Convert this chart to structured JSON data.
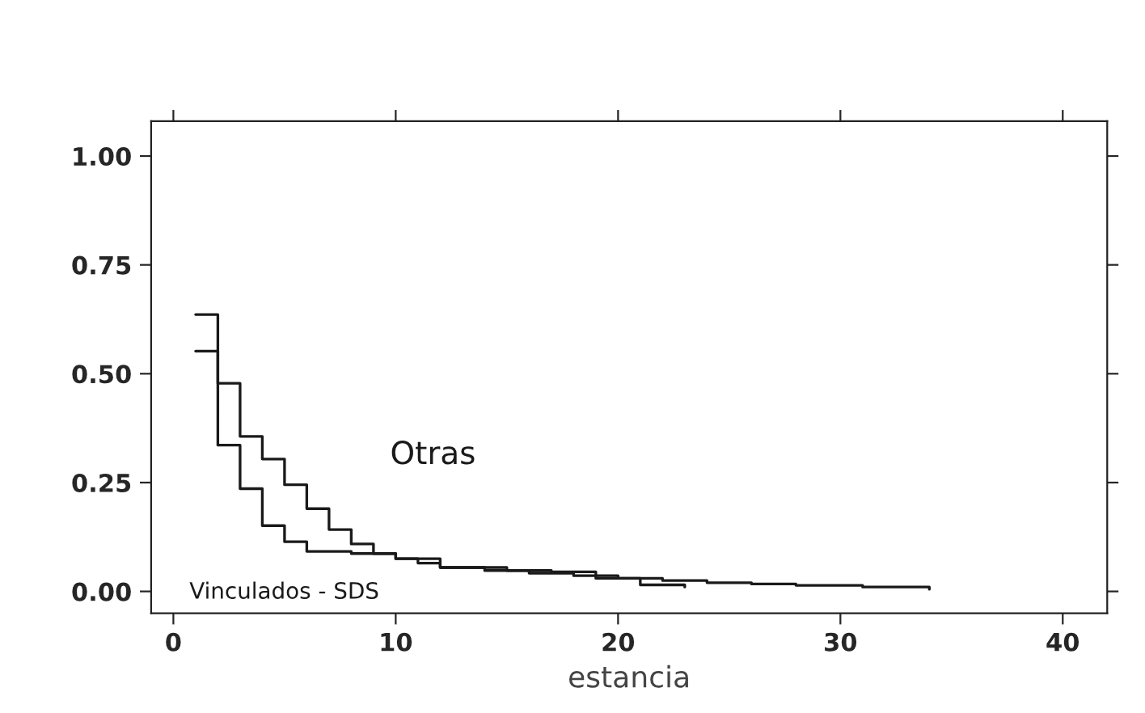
{
  "chart_data": {
    "type": "step",
    "xlabel": "estancia",
    "series": [
      {
        "name": "Otras",
        "color": "#1a1a1a",
        "x": [
          1,
          2,
          3,
          4,
          5,
          6,
          7,
          8,
          9,
          10,
          11,
          12,
          14,
          16,
          18,
          20,
          22,
          24,
          26,
          28,
          31,
          34
        ],
        "values": [
          0.636,
          0.478,
          0.356,
          0.304,
          0.245,
          0.19,
          0.142,
          0.109,
          0.087,
          0.075,
          0.065,
          0.055,
          0.048,
          0.042,
          0.036,
          0.03,
          0.025,
          0.02,
          0.017,
          0.014,
          0.01,
          0.005
        ]
      },
      {
        "name": "Vinculados - SDS",
        "color": "#1a1a1a",
        "x": [
          1,
          2,
          3,
          4,
          5,
          6,
          8,
          10,
          12,
          15,
          17,
          19,
          21,
          23
        ],
        "values": [
          0.552,
          0.336,
          0.236,
          0.151,
          0.114,
          0.092,
          0.087,
          0.075,
          0.055,
          0.048,
          0.045,
          0.03,
          0.015,
          0.01
        ]
      }
    ],
    "xlim": [
      -1,
      42
    ],
    "xticks": [
      0,
      10,
      20,
      30,
      40
    ],
    "ylim": [
      -0.05,
      1.08
    ],
    "yticks": [
      {
        "value": 0,
        "label": "0.00"
      },
      {
        "value": 0.25,
        "label": "0.25"
      },
      {
        "value": 0.5,
        "label": "0.50"
      },
      {
        "value": 0.75,
        "label": "0.75"
      },
      {
        "value": 1,
        "label": "1.00"
      }
    ],
    "grid": false,
    "legend": false,
    "line_style": "solid",
    "marker": "none"
  }
}
